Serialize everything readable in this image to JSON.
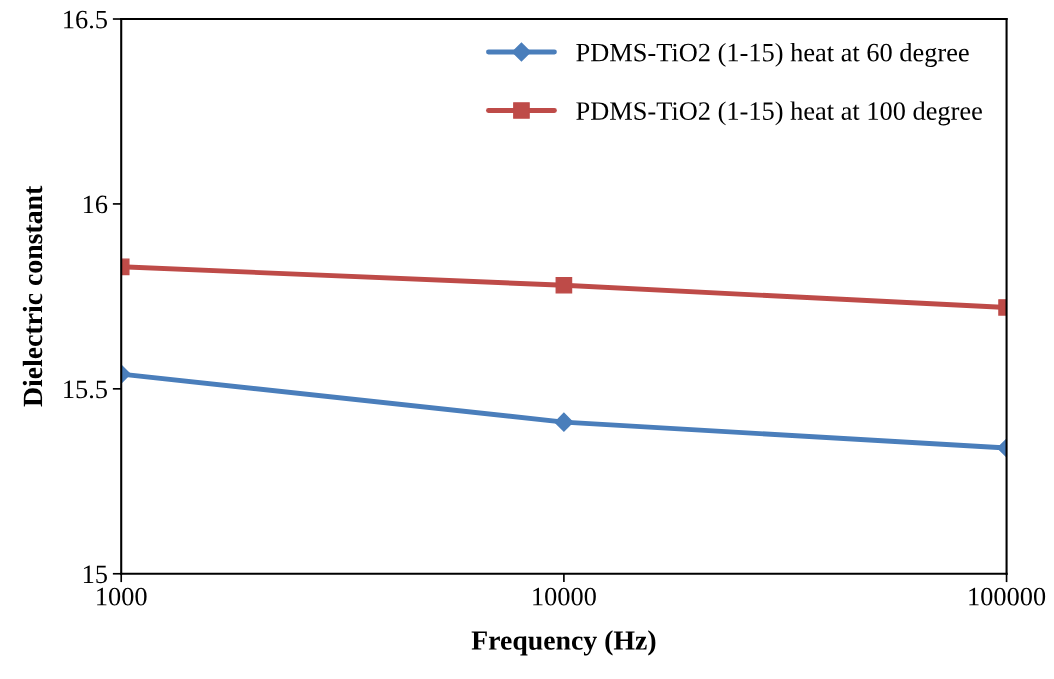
{
  "chart_data": {
    "type": "line",
    "xlabel": "Frequency (Hz)",
    "ylabel": "Dielectric constant",
    "x": [
      1000,
      10000,
      100000
    ],
    "series": [
      {
        "name": "PDMS-TiO2 (1-15) heat at 60 degree",
        "color": "#4a7ebb",
        "values": [
          15.54,
          15.41,
          15.34
        ],
        "marker": "diamond"
      },
      {
        "name": "PDMS-TiO2 (1-15) heat at 100 degree",
        "color": "#be4b48",
        "values": [
          15.83,
          15.78,
          15.72
        ],
        "marker": "square"
      }
    ],
    "log": "x",
    "xlim": [
      1000,
      100000
    ],
    "xticks": [
      1000,
      10000,
      100000
    ],
    "ylim": [
      15,
      16.5
    ],
    "yticks": [
      15,
      15.5,
      16,
      16.5
    ],
    "grid": false,
    "legend": "top right",
    "line_style": "solid"
  }
}
